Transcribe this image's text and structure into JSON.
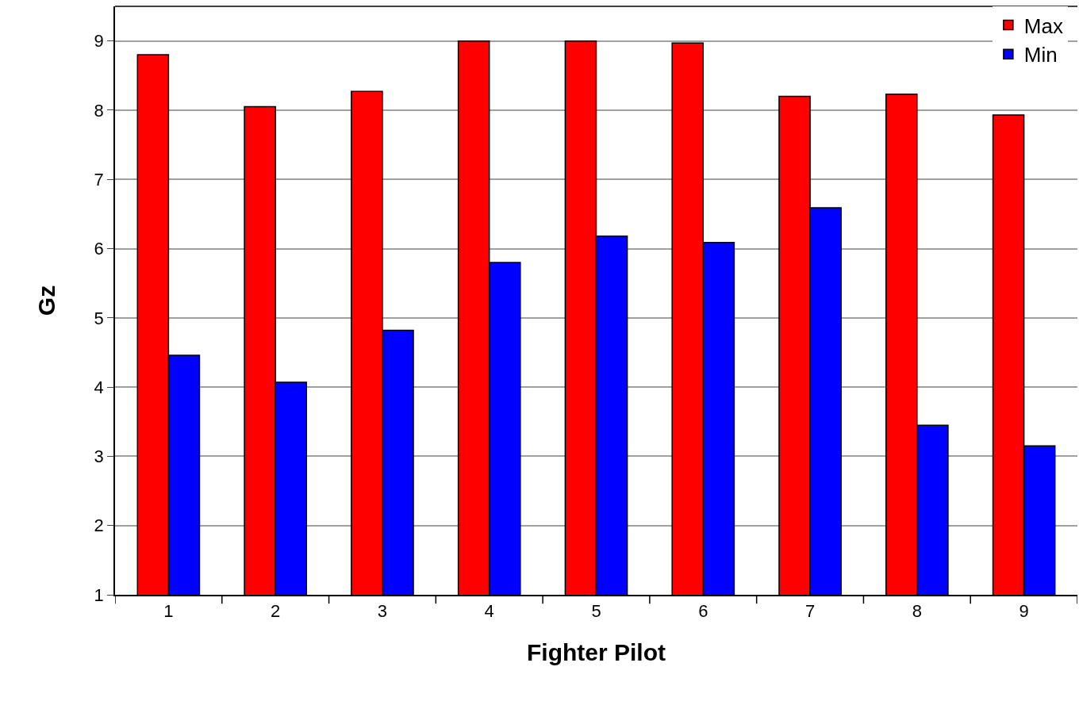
{
  "chart_data": {
    "type": "bar",
    "xlabel": "Fighter Pilot",
    "ylabel": "Gz",
    "categories": [
      "1",
      "2",
      "3",
      "4",
      "5",
      "6",
      "7",
      "8",
      "9"
    ],
    "series": [
      {
        "name": "Max",
        "color": "#ff0000",
        "values": [
          8.8,
          8.05,
          8.27,
          9.0,
          9.0,
          8.97,
          8.2,
          8.23,
          7.93
        ]
      },
      {
        "name": "Min",
        "color": "#0000ff",
        "values": [
          4.46,
          4.07,
          4.82,
          5.8,
          6.18,
          6.09,
          6.59,
          3.45,
          3.15
        ]
      }
    ],
    "ylim": [
      1,
      9.5
    ],
    "yticks": [
      1,
      2,
      3,
      4,
      5,
      6,
      7,
      8,
      9
    ],
    "grid": "y",
    "legend": "top right"
  }
}
